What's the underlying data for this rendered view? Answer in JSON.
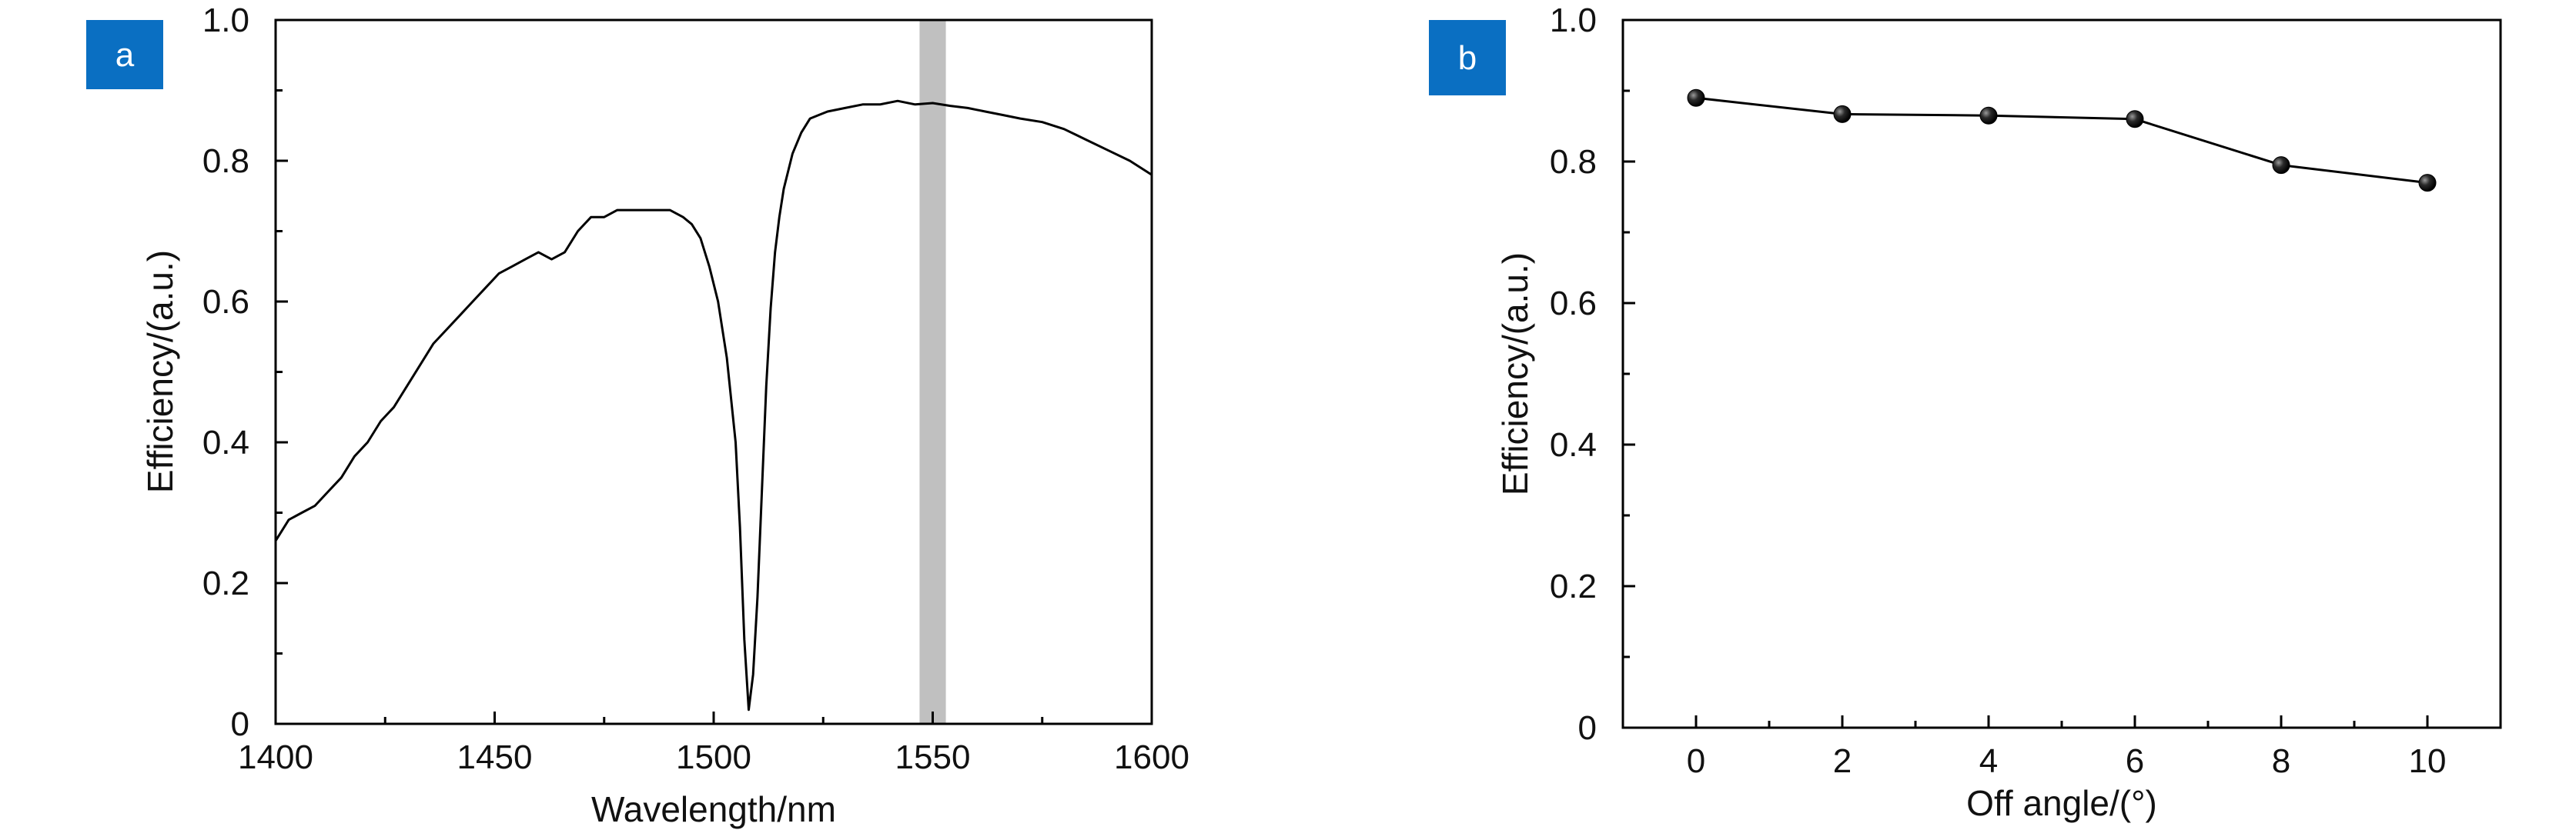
{
  "colors": {
    "badge": "#0a6fc2",
    "line": "#000000",
    "highlight": "#c0c0c0",
    "marker": "#111111"
  },
  "panels": [
    {
      "label": "a"
    },
    {
      "label": "b"
    }
  ],
  "chart_data": [
    {
      "type": "line",
      "panel": "a",
      "xlabel": "Wavelength/nm",
      "ylabel": "Efficiency/(a.u.)",
      "xlim": [
        1400,
        1600
      ],
      "ylim": [
        0,
        1.0
      ],
      "xticks": [
        1400,
        1450,
        1500,
        1550,
        1600
      ],
      "xtick_labels": [
        "1400",
        "1450",
        "1500",
        "1550",
        "1600"
      ],
      "yticks": [
        0,
        0.2,
        0.4,
        0.6,
        0.8,
        1.0
      ],
      "ytick_labels": [
        "0",
        "0.2",
        "0.4",
        "0.6",
        "0.8",
        "1.0"
      ],
      "grid": false,
      "highlight_band": [
        1547,
        1553
      ],
      "series": [
        {
          "x": [
            1400,
            1403,
            1406,
            1409,
            1412,
            1415,
            1418,
            1421,
            1424,
            1427,
            1430,
            1433,
            1436,
            1439,
            1442,
            1445,
            1448,
            1451,
            1454,
            1457,
            1460,
            1463,
            1466,
            1469,
            1472,
            1475,
            1478,
            1481,
            1484,
            1487,
            1490,
            1493,
            1495,
            1497,
            1499,
            1501,
            1503,
            1505,
            1506,
            1507,
            1508,
            1509,
            1510,
            1511,
            1512,
            1513,
            1514,
            1515,
            1516,
            1518,
            1520,
            1522,
            1524,
            1526,
            1530,
            1534,
            1538,
            1542,
            1546,
            1550,
            1554,
            1558,
            1562,
            1566,
            1570,
            1575,
            1580,
            1585,
            1590,
            1595,
            1600
          ],
          "y": [
            0.26,
            0.29,
            0.3,
            0.31,
            0.33,
            0.35,
            0.38,
            0.4,
            0.43,
            0.45,
            0.48,
            0.51,
            0.54,
            0.56,
            0.58,
            0.6,
            0.62,
            0.64,
            0.65,
            0.66,
            0.67,
            0.66,
            0.67,
            0.7,
            0.72,
            0.72,
            0.73,
            0.73,
            0.73,
            0.73,
            0.73,
            0.72,
            0.71,
            0.69,
            0.65,
            0.6,
            0.52,
            0.4,
            0.28,
            0.12,
            0.02,
            0.07,
            0.18,
            0.33,
            0.48,
            0.59,
            0.67,
            0.72,
            0.76,
            0.81,
            0.84,
            0.86,
            0.865,
            0.87,
            0.875,
            0.88,
            0.88,
            0.885,
            0.88,
            0.882,
            0.878,
            0.875,
            0.87,
            0.865,
            0.86,
            0.855,
            0.845,
            0.83,
            0.815,
            0.8,
            0.78
          ]
        }
      ]
    },
    {
      "type": "line",
      "panel": "b",
      "xlabel": "Off angle/(°)",
      "ylabel": "Efficiency/(a.u.)",
      "xlim": [
        -1,
        11
      ],
      "ylim": [
        0,
        1.0
      ],
      "xticks": [
        0,
        2,
        4,
        6,
        8,
        10
      ],
      "xtick_labels": [
        "0",
        "2",
        "4",
        "6",
        "8",
        "10"
      ],
      "yticks": [
        0,
        0.2,
        0.4,
        0.6,
        0.8,
        1.0
      ],
      "ytick_labels": [
        "0",
        "0.2",
        "0.4",
        "0.6",
        "0.8",
        "1.0"
      ],
      "grid": false,
      "markers": true,
      "series": [
        {
          "x": [
            0,
            2,
            4,
            6,
            8,
            10
          ],
          "y": [
            0.89,
            0.867,
            0.865,
            0.86,
            0.795,
            0.77
          ]
        }
      ]
    }
  ]
}
